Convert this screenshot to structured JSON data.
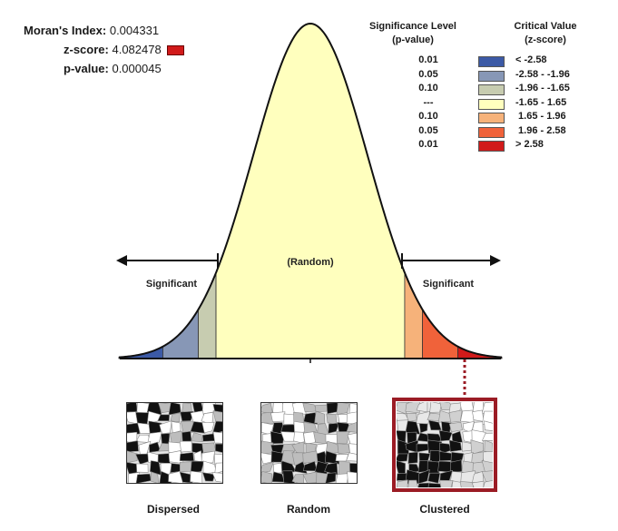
{
  "stats": {
    "morans_label": "Moran's Index:",
    "morans_value": "0.004331",
    "z_label": "z-score:",
    "z_value": "4.082478",
    "p_label": "p-value:",
    "p_value": "0.000045",
    "z_swatch_color": "#d11a1a"
  },
  "legend": {
    "sig_header_1": "Significance Level",
    "sig_header_2": "(p-value)",
    "crit_header_1": "Critical Value",
    "crit_header_2": "(z-score)",
    "rows": [
      {
        "p": "0.01",
        "z": "< -2.58",
        "color": "#3c5aa6"
      },
      {
        "p": "0.05",
        "z": "-2.58 - -1.96",
        "color": "#8797b6"
      },
      {
        "p": "0.10",
        "z": "-1.96 - -1.65",
        "color": "#c7ccb0"
      },
      {
        "p": "---",
        "z": "-1.65 - 1.65",
        "color": "#ffffbe"
      },
      {
        "p": "0.10",
        "z": " 1.65 - 1.96",
        "color": "#f6b27a"
      },
      {
        "p": "0.05",
        "z": " 1.96 - 2.58",
        "color": "#f0623a"
      },
      {
        "p": "0.01",
        "z": "> 2.58",
        "color": "#d11a1a"
      }
    ]
  },
  "curve": {
    "random_label": "(Random)",
    "left_label": "Significant",
    "right_label": "Significant",
    "z_breaks": [
      -2.58,
      -1.96,
      -1.65,
      1.65,
      1.96,
      2.58
    ]
  },
  "maps": {
    "dispersed_label": "Dispersed",
    "random_label": "Random",
    "clustered_label": "Clustered"
  }
}
